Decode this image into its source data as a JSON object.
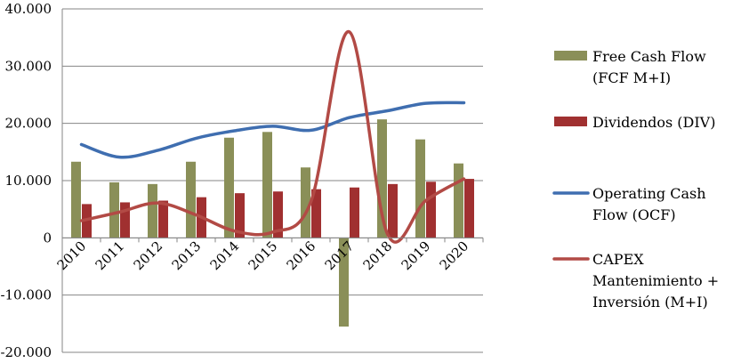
{
  "chart_data": {
    "type": "bar",
    "categories": [
      "2010",
      "2011",
      "2012",
      "2013",
      "2014",
      "2015",
      "2016",
      "2017",
      "2018",
      "2019",
      "2020"
    ],
    "ylim": [
      -20000,
      40000
    ],
    "yticks": [
      {
        "value": -20000,
        "label": "-20.000"
      },
      {
        "value": -10000,
        "label": "-10.000"
      },
      {
        "value": 0,
        "label": "0"
      },
      {
        "value": 10000,
        "label": "10.000"
      },
      {
        "value": 20000,
        "label": "20.000"
      },
      {
        "value": 30000,
        "label": "30.000"
      },
      {
        "value": 40000,
        "label": "40.000"
      }
    ],
    "grid": true,
    "legend_position": "right",
    "series": [
      {
        "name": "Free Cash Flow (FCF M+I)",
        "label_lines": [
          "Free Cash Flow",
          "(FCF M+I)"
        ],
        "type": "bar",
        "color": "#8A8F58",
        "values": [
          13300,
          9700,
          9400,
          13300,
          17500,
          18500,
          12300,
          -15500,
          20700,
          17200,
          13000
        ]
      },
      {
        "name": "Dividendos (DIV)",
        "label_lines": [
          "Dividendos (DIV)"
        ],
        "type": "bar",
        "color": "#A03030",
        "values": [
          5900,
          6200,
          6500,
          7100,
          7800,
          8100,
          8500,
          8800,
          9400,
          9800,
          10300
        ]
      },
      {
        "name": "Operating Cash Flow (OCF)",
        "label_lines": [
          "Operating Cash",
          "Flow (OCF)"
        ],
        "type": "line",
        "color": "#3F6EB0",
        "values": [
          16300,
          14100,
          15300,
          17400,
          18700,
          19500,
          18800,
          21000,
          22200,
          23500,
          23600
        ]
      },
      {
        "name": "CAPEX Mantenimiento + Inversión (M+I)",
        "label_lines": [
          "CAPEX",
          "Mantenimiento +",
          "Inversión (M+I)"
        ],
        "type": "line",
        "color": "#B24A45",
        "values": [
          3000,
          4500,
          6100,
          4000,
          1200,
          1000,
          6300,
          36000,
          700,
          6500,
          10300
        ]
      }
    ]
  }
}
